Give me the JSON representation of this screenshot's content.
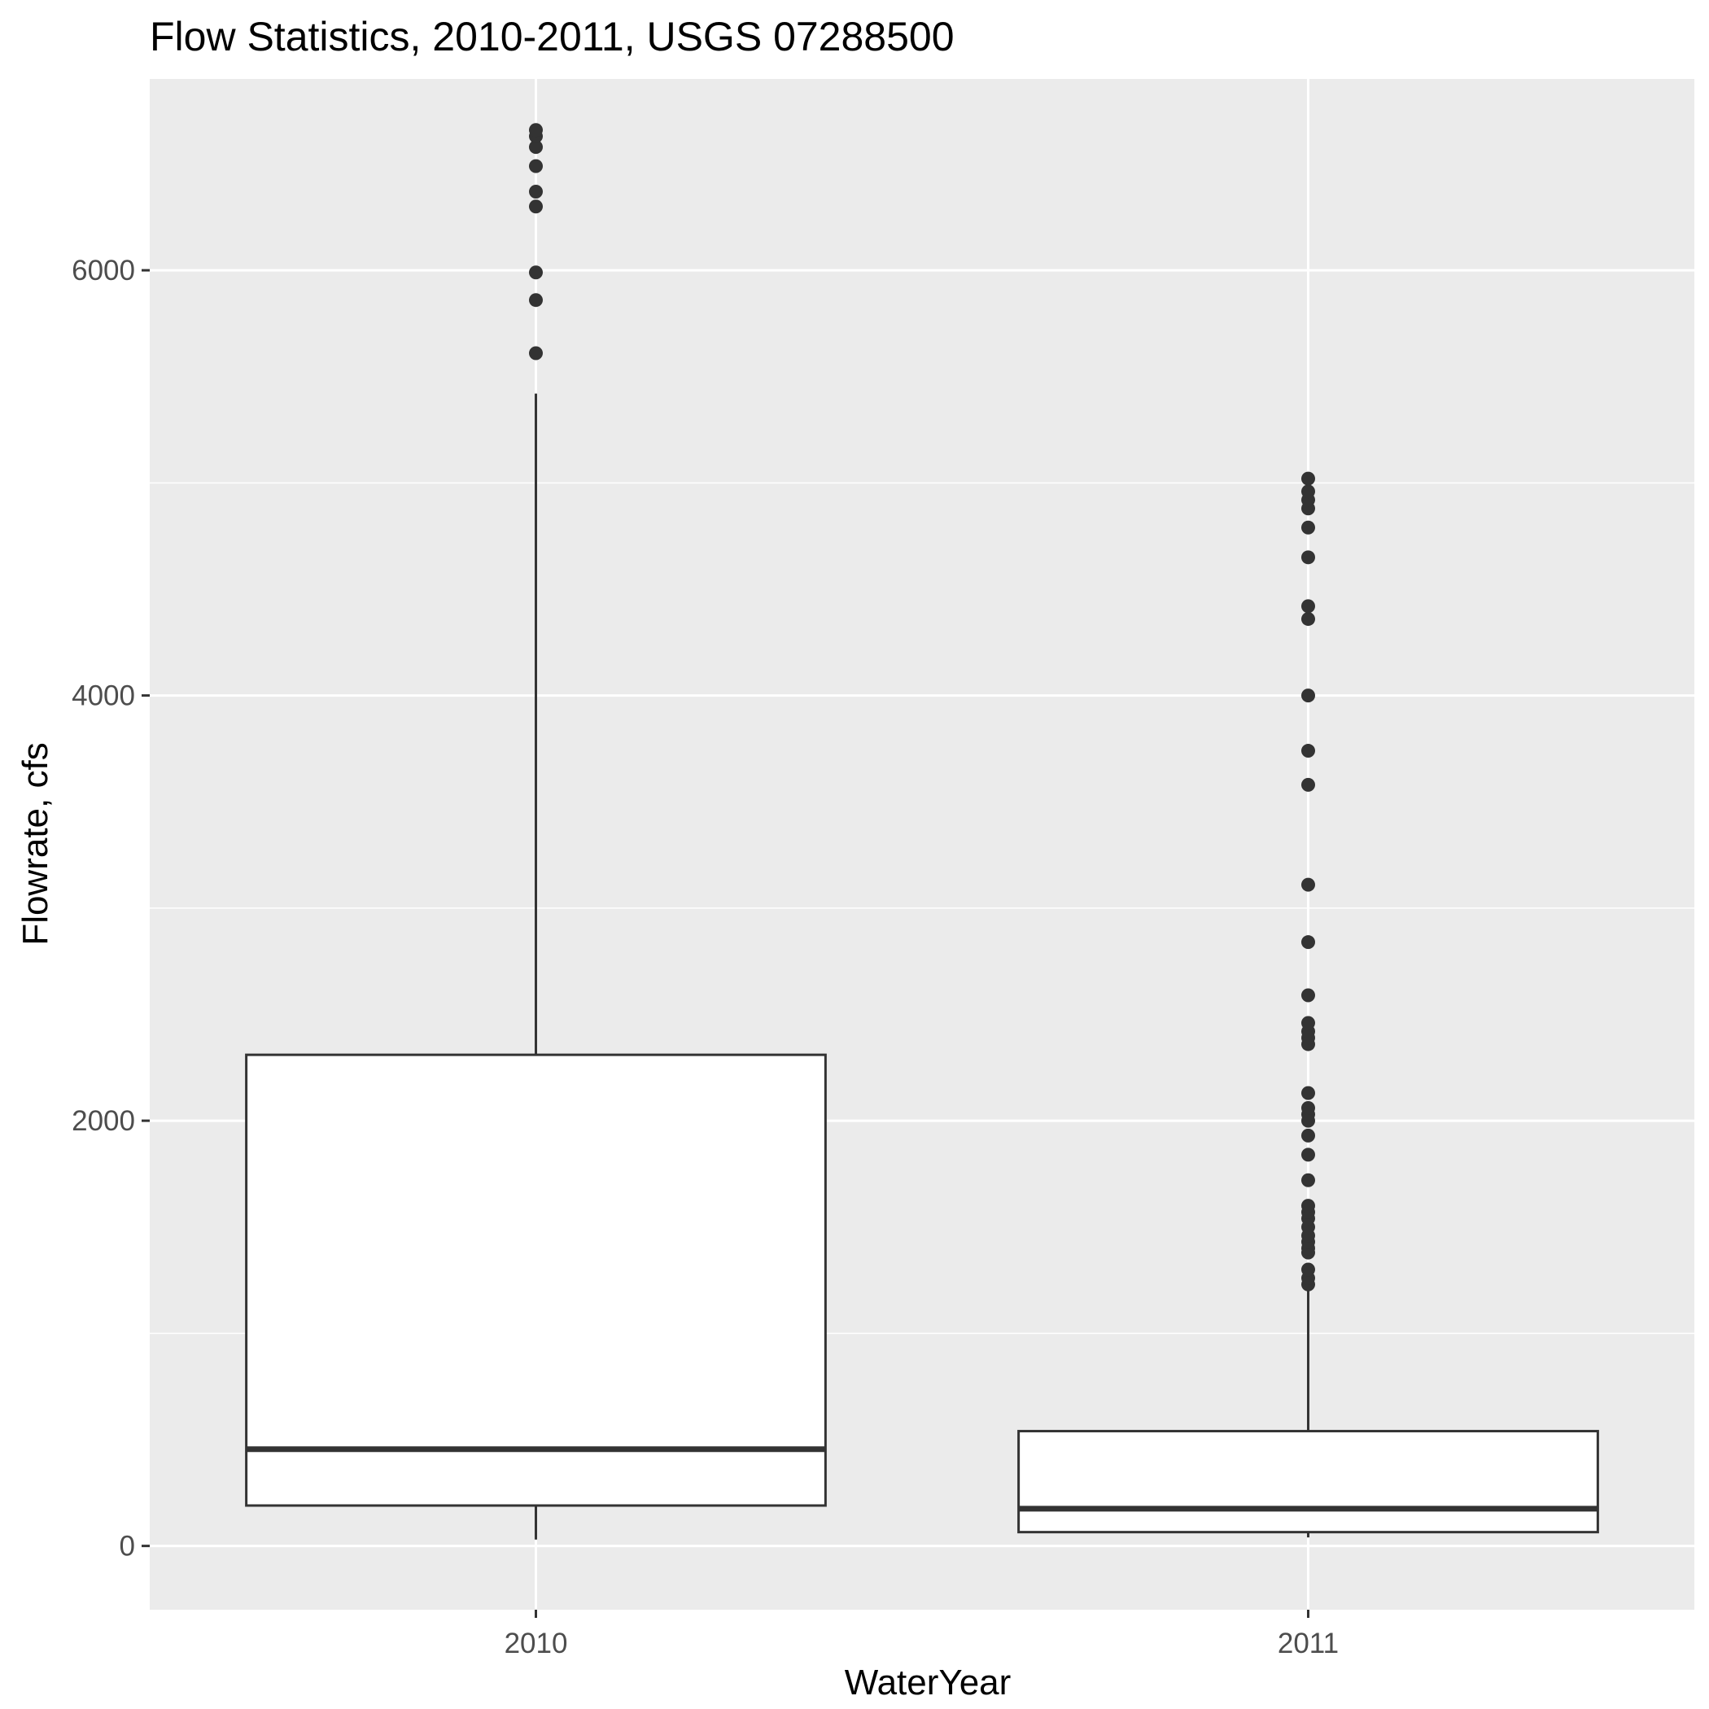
{
  "chart_data": {
    "type": "boxplot",
    "title": "Flow Statistics, 2010-2011, USGS 07288500",
    "xlabel": "WaterYear",
    "ylabel": "Flowrate, cfs",
    "ylim": [
      -300,
      6900
    ],
    "yticks": [
      0,
      2000,
      4000,
      6000
    ],
    "ytick_labels": [
      "0",
      "2000",
      "4000",
      "6000"
    ],
    "minor_yticks": [
      1000,
      3000,
      5000
    ],
    "grid": true,
    "colors": {
      "panel_background": "#ebebeb",
      "grid": "#ffffff",
      "box_fill": "#ffffff",
      "box_stroke": "#333333",
      "outlier": "#333333",
      "tick": "#333333"
    },
    "categories": [
      "2010",
      "2011"
    ],
    "boxes": [
      {
        "category": "2010",
        "whisker_low": 30,
        "q1": 190,
        "median": 455,
        "q3": 2310,
        "whisker_high": 5420,
        "outliers": [
          5610,
          5860,
          5990,
          6300,
          6370,
          6490,
          6580,
          6630,
          6660
        ]
      },
      {
        "category": "2011",
        "whisker_low": 40,
        "q1": 65,
        "median": 175,
        "q3": 540,
        "whisker_high": 1250,
        "outliers": [
          1230,
          1260,
          1300,
          1380,
          1400,
          1430,
          1460,
          1500,
          1540,
          1570,
          1600,
          1720,
          1840,
          1930,
          2000,
          2030,
          2060,
          2130,
          2360,
          2390,
          2420,
          2460,
          2590,
          2840,
          3110,
          3580,
          3740,
          4000,
          4360,
          4420,
          4650,
          4790,
          4880,
          4920,
          4960,
          5020
        ]
      }
    ]
  }
}
